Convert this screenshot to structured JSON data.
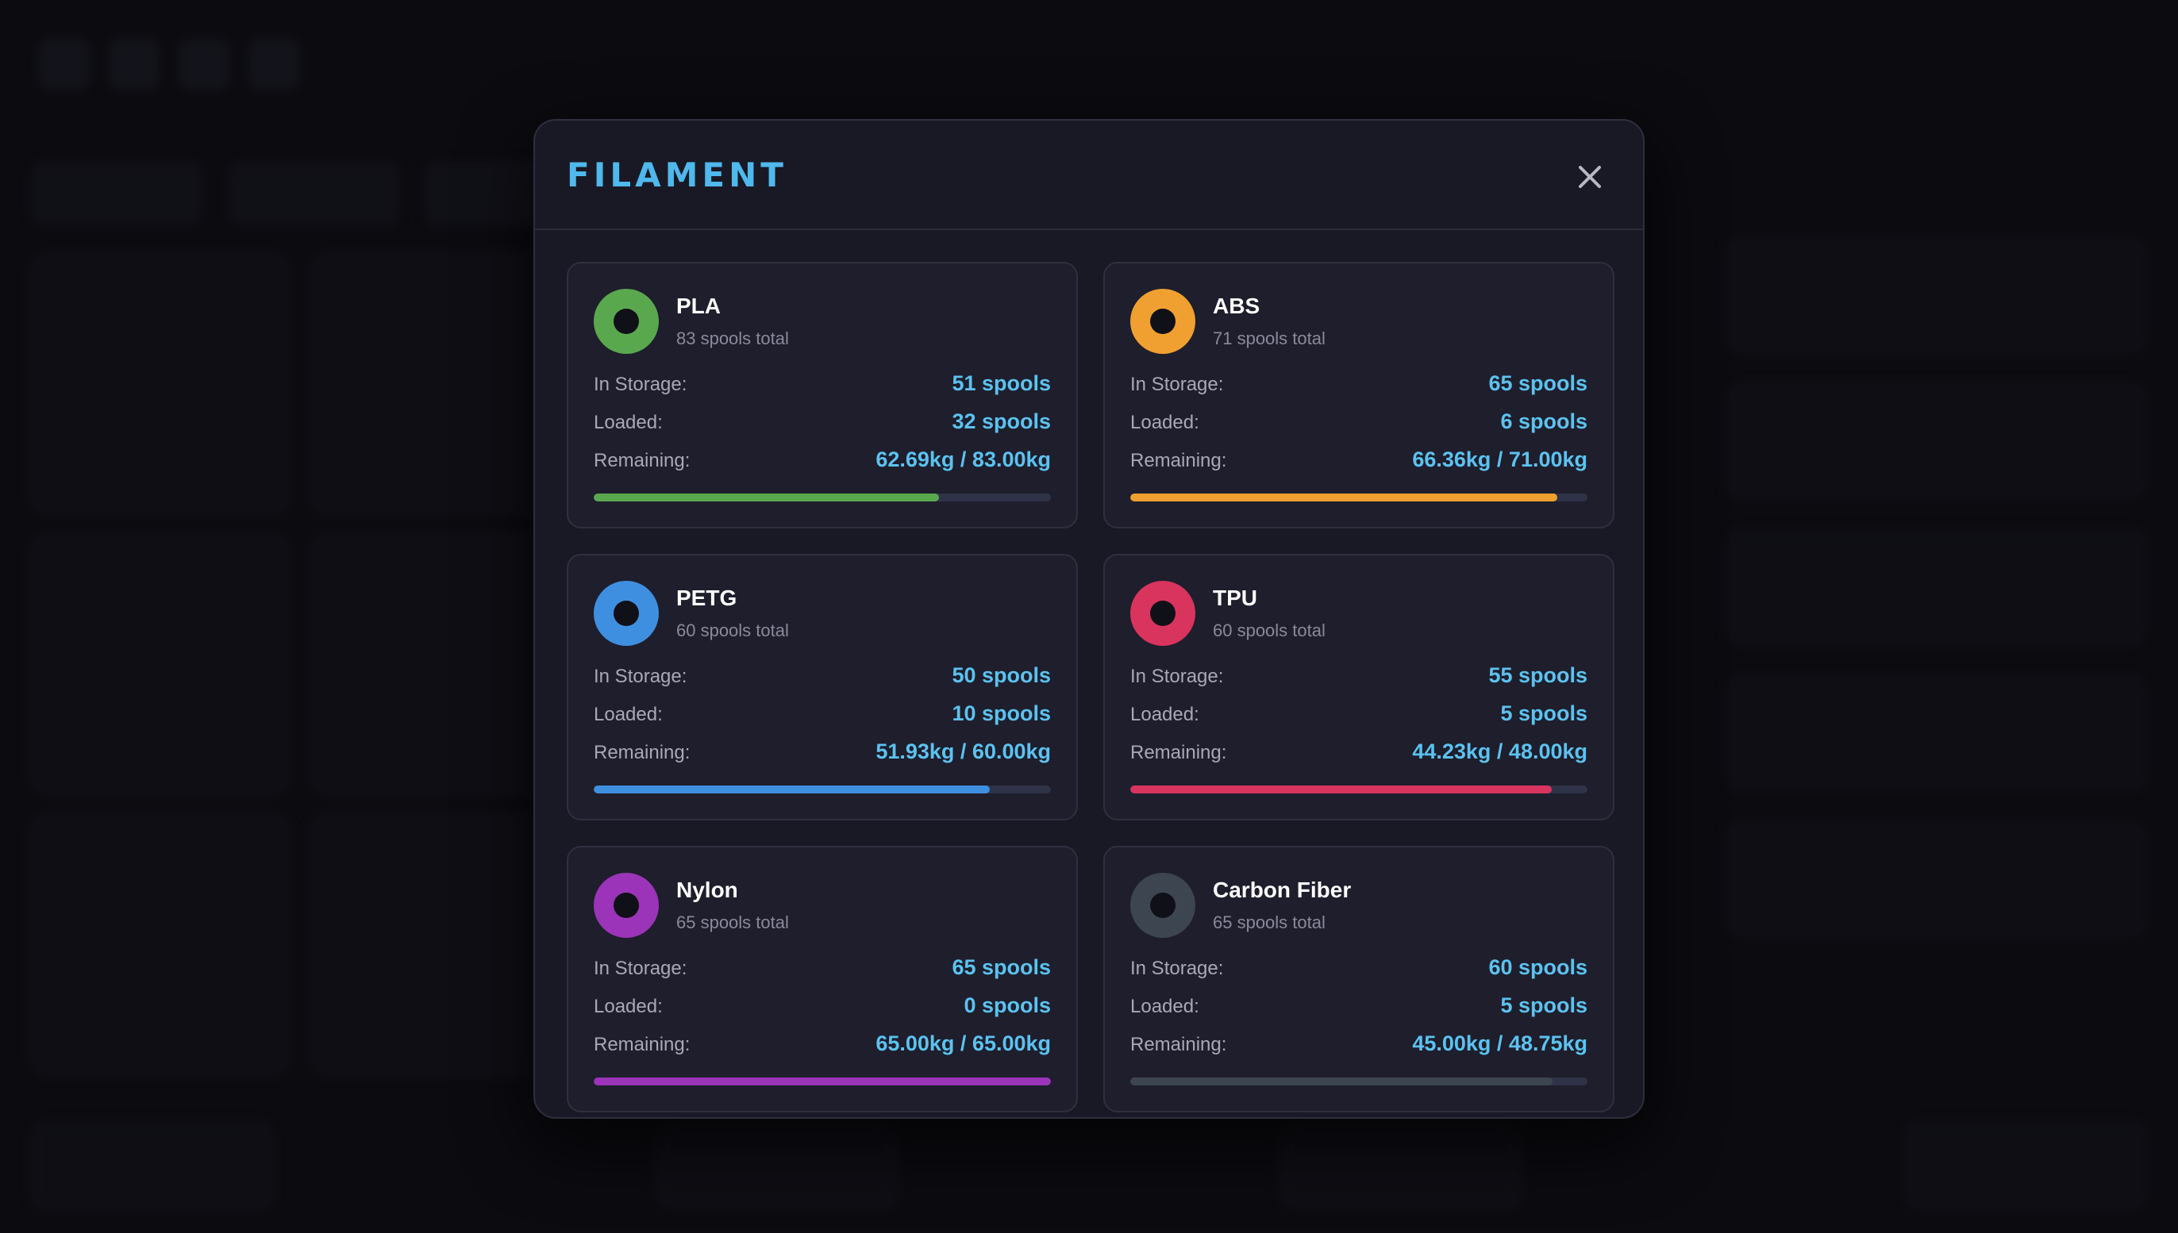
{
  "modal": {
    "title": "FILAMENT",
    "close_icon": "close-icon"
  },
  "filaments": [
    {
      "name": "PLA",
      "total": "83 spools total",
      "color": "#5aa84e",
      "storage_label": "In Storage:",
      "storage": "51 spools",
      "loaded_label": "Loaded:",
      "loaded": "32 spools",
      "remaining_label": "Remaining:",
      "remaining": "62.69kg / 83.00kg",
      "fraction": 0.7553
    },
    {
      "name": "ABS",
      "total": "71 spools total",
      "color": "#f0a030",
      "storage_label": "In Storage:",
      "storage": "65 spools",
      "loaded_label": "Loaded:",
      "loaded": "6 spools",
      "remaining_label": "Remaining:",
      "remaining": "66.36kg / 71.00kg",
      "fraction": 0.9346
    },
    {
      "name": "PETG",
      "total": "60 spools total",
      "color": "#3f8fe0",
      "storage_label": "In Storage:",
      "storage": "50 spools",
      "loaded_label": "Loaded:",
      "loaded": "10 spools",
      "remaining_label": "Remaining:",
      "remaining": "51.93kg / 60.00kg",
      "fraction": 0.8655
    },
    {
      "name": "TPU",
      "total": "60 spools total",
      "color": "#d8345e",
      "storage_label": "In Storage:",
      "storage": "55 spools",
      "loaded_label": "Loaded:",
      "loaded": "5 spools",
      "remaining_label": "Remaining:",
      "remaining": "44.23kg / 48.00kg",
      "fraction": 0.9215
    },
    {
      "name": "Nylon",
      "total": "65 spools total",
      "color": "#9b34b8",
      "storage_label": "In Storage:",
      "storage": "65 spools",
      "loaded_label": "Loaded:",
      "loaded": "0 spools",
      "remaining_label": "Remaining:",
      "remaining": "65.00kg / 65.00kg",
      "fraction": 1.0
    },
    {
      "name": "Carbon Fiber",
      "total": "65 spools total",
      "color": "#3d4650",
      "storage_label": "In Storage:",
      "storage": "60 spools",
      "loaded_label": "Loaded:",
      "loaded": "5 spools",
      "remaining_label": "Remaining:",
      "remaining": "45.00kg / 48.75kg",
      "fraction": 0.9231
    }
  ]
}
